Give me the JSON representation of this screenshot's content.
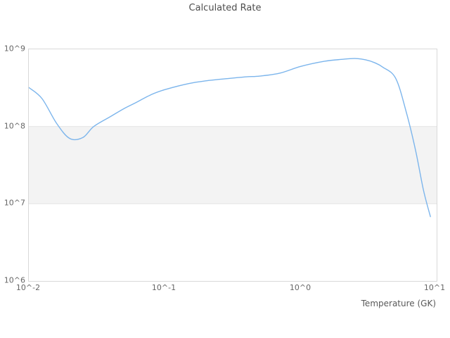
{
  "title": "Calculated Rate",
  "chart_data": {
    "type": "line",
    "title": "Calculated Rate",
    "xlabel": "Temperature (GK)",
    "ylabel": "",
    "x_scale": "log",
    "y_scale": "log",
    "xlim": [
      0.01,
      10
    ],
    "ylim": [
      1000000,
      1000000000
    ],
    "x_ticks": [
      "10^-2",
      "10^-1",
      "10^0",
      "10^1"
    ],
    "y_ticks": [
      "10^6",
      "10^7",
      "10^8",
      "10^9"
    ],
    "legend": "none",
    "grid": "decade lines at 10^7 and 10^8 only",
    "plot_band": {
      "from": 10000000,
      "to": 100000000
    },
    "series": [
      {
        "name": "Calculated Rate",
        "x": [
          0.01,
          0.0125,
          0.016,
          0.02,
          0.025,
          0.03,
          0.04,
          0.05,
          0.06,
          0.08,
          0.1,
          0.15,
          0.2,
          0.3,
          0.4,
          0.5,
          0.7,
          1.0,
          1.5,
          2.0,
          2.5,
          3.0,
          3.5,
          4.0,
          5.0,
          6.0,
          7.0,
          8.0,
          9.0
        ],
        "y": [
          320000000.0,
          230000000.0,
          110000000.0,
          70000000.0,
          72000000.0,
          100000000.0,
          135000000.0,
          170000000.0,
          200000000.0,
          260000000.0,
          300000000.0,
          360000000.0,
          390000000.0,
          420000000.0,
          440000000.0,
          450000000.0,
          490000000.0,
          600000000.0,
          700000000.0,
          740000000.0,
          760000000.0,
          730000000.0,
          670000000.0,
          590000000.0,
          420000000.0,
          150000000.0,
          49000000.0,
          15000000.0,
          6800000.0
        ]
      }
    ],
    "colors": {
      "line": "#7cb5ec",
      "band_fill": "#f3f3f3",
      "band_edge": "#e4e4e4",
      "frame": "#d9d9d9",
      "title_text": "#4d4d4d",
      "tick_text": "#666666",
      "background": "#ffffff"
    }
  }
}
